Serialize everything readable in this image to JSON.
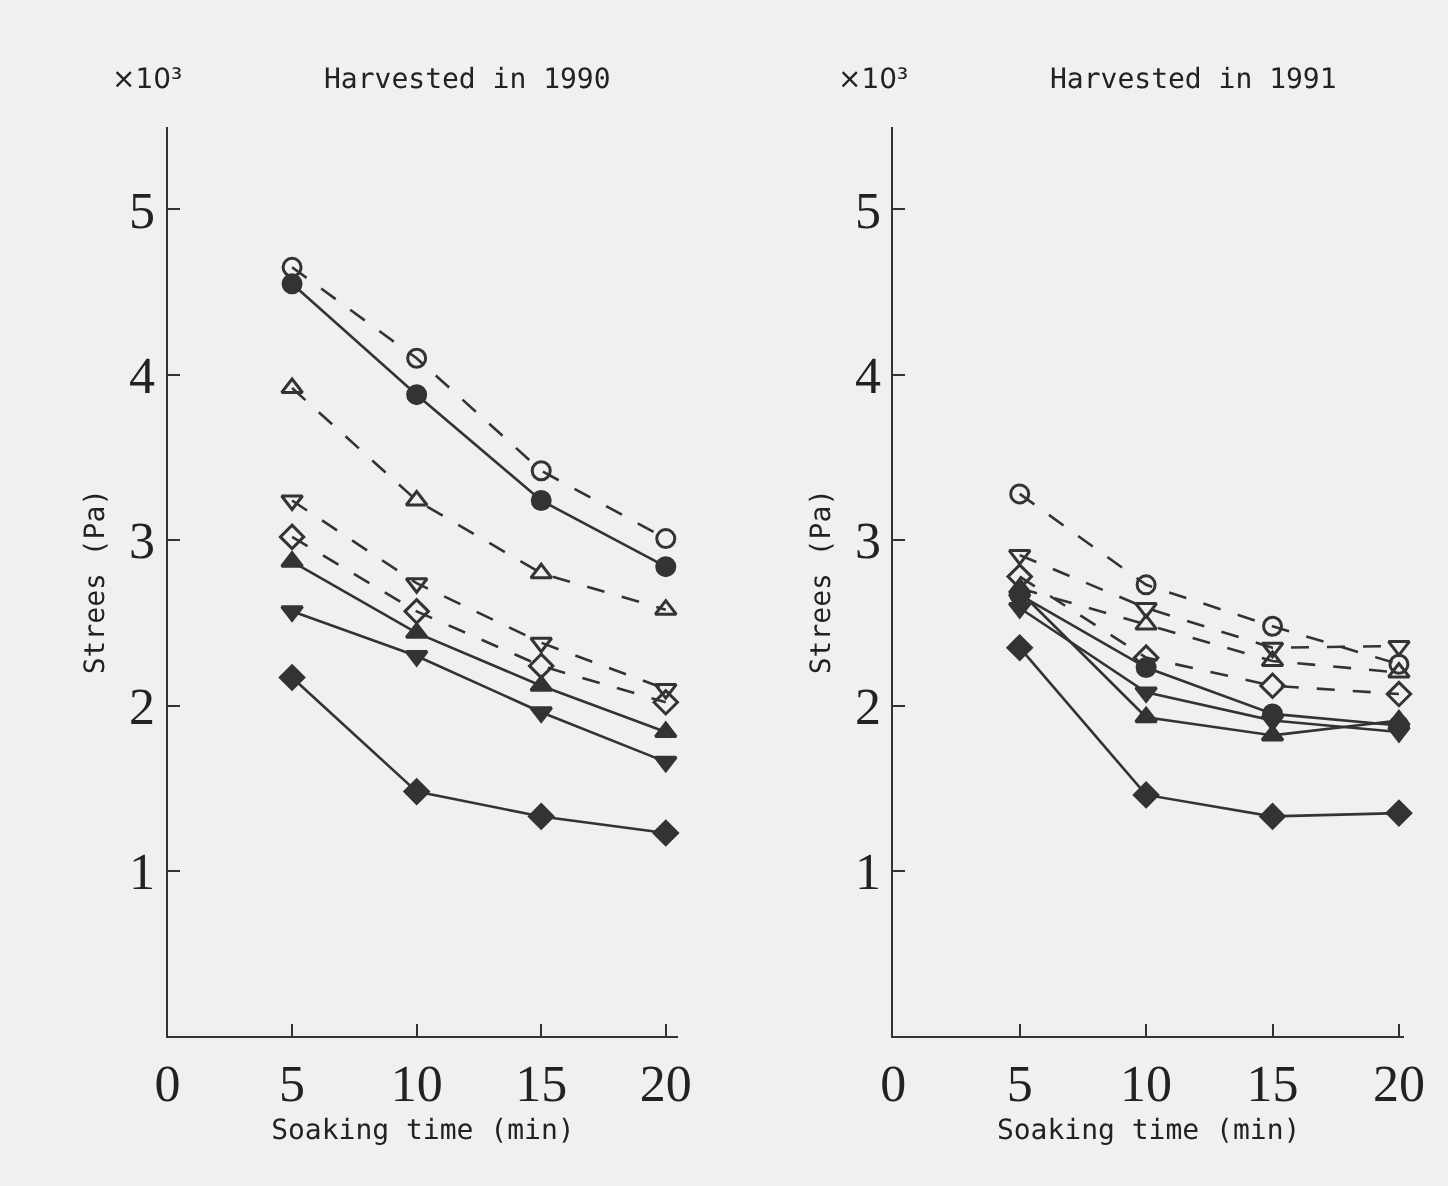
{
  "chart_data": [
    {
      "type": "line",
      "title": "Harvested in 1990",
      "xlabel": "Soaking time (min)",
      "ylabel": "Strees (Pa)",
      "annotations": [
        "×10³"
      ],
      "x": [
        5,
        10,
        15,
        20
      ],
      "xlim": [
        0,
        20.5
      ],
      "xticks": [
        0,
        5,
        10,
        15,
        20
      ],
      "ylim": [
        0,
        5.5
      ],
      "yticks": [
        1,
        2,
        3,
        4,
        5
      ],
      "grid": false,
      "series": [
        {
          "color": "#333333",
          "marker": "circle-open",
          "line_style": "dashed",
          "values": [
            4.65,
            4.1,
            3.42,
            3.01
          ]
        },
        {
          "color": "#333333",
          "marker": "circle",
          "line_style": "solid",
          "values": [
            4.55,
            3.88,
            3.24,
            2.84
          ]
        },
        {
          "color": "#333333",
          "marker": "triangle-up-open",
          "line_style": "dashed",
          "values": [
            3.92,
            3.24,
            2.8,
            2.58
          ]
        },
        {
          "color": "#333333",
          "marker": "triangle-down-open",
          "line_style": "dashed",
          "values": [
            3.24,
            2.74,
            2.38,
            2.1
          ]
        },
        {
          "color": "#333333",
          "marker": "diamond-open",
          "line_style": "dashed",
          "values": [
            3.02,
            2.57,
            2.24,
            2.02
          ]
        },
        {
          "color": "#333333",
          "marker": "triangle-up",
          "line_style": "solid",
          "values": [
            2.87,
            2.44,
            2.12,
            1.84
          ]
        },
        {
          "color": "#333333",
          "marker": "triangle-down",
          "line_style": "solid",
          "values": [
            2.57,
            2.3,
            1.96,
            1.66
          ]
        },
        {
          "color": "#333333",
          "marker": "diamond",
          "line_style": "solid",
          "values": [
            2.17,
            1.48,
            1.33,
            1.23
          ]
        }
      ]
    },
    {
      "type": "line",
      "title": "Harvested in 1991",
      "xlabel": "Soaking time (min)",
      "ylabel": "Strees (Pa)",
      "annotations": [
        "×10³"
      ],
      "x": [
        5,
        10,
        15,
        20
      ],
      "xlim": [
        0,
        20.2
      ],
      "xticks": [
        0,
        5,
        10,
        15,
        20
      ],
      "ylim": [
        0,
        5.5
      ],
      "yticks": [
        1,
        2,
        3,
        4,
        5
      ],
      "grid": false,
      "series": [
        {
          "color": "#333333",
          "marker": "circle-open",
          "line_style": "dashed",
          "values": [
            3.28,
            2.73,
            2.48,
            2.25
          ]
        },
        {
          "color": "#333333",
          "marker": "triangle-down-open",
          "line_style": "dashed",
          "values": [
            2.91,
            2.59,
            2.35,
            2.36
          ]
        },
        {
          "color": "#333333",
          "marker": "triangle-up-open",
          "line_style": "dashed",
          "values": [
            2.71,
            2.49,
            2.27,
            2.2
          ]
        },
        {
          "color": "#333333",
          "marker": "diamond-open",
          "line_style": "dashed",
          "values": [
            2.78,
            2.29,
            2.12,
            2.07
          ]
        },
        {
          "color": "#333333",
          "marker": "circle",
          "line_style": "solid",
          "values": [
            2.67,
            2.23,
            1.95,
            1.88
          ]
        },
        {
          "color": "#333333",
          "marker": "triangle-down",
          "line_style": "solid",
          "values": [
            2.59,
            2.08,
            1.91,
            1.84
          ]
        },
        {
          "color": "#333333",
          "marker": "triangle-up",
          "line_style": "solid",
          "values": [
            2.69,
            1.93,
            1.82,
            1.91
          ]
        },
        {
          "color": "#333333",
          "marker": "diamond",
          "line_style": "solid",
          "values": [
            2.35,
            1.46,
            1.33,
            1.35
          ]
        }
      ]
    }
  ]
}
